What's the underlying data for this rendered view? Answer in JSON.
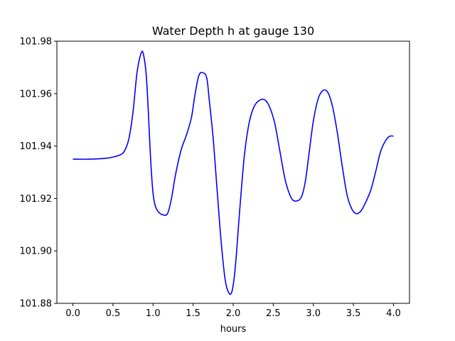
{
  "chart_data": {
    "type": "line",
    "title": "Water Depth h at gauge 130",
    "xlabel": "hours",
    "ylabel": "",
    "xlim": [
      -0.2,
      4.2
    ],
    "ylim": [
      101.88,
      101.98
    ],
    "xticks": [
      0.0,
      0.5,
      1.0,
      1.5,
      2.0,
      2.5,
      3.0,
      3.5,
      4.0
    ],
    "xtick_labels": [
      "0.0",
      "0.5",
      "1.0",
      "1.5",
      "2.0",
      "2.5",
      "3.0",
      "3.5",
      "4.0"
    ],
    "yticks": [
      101.88,
      101.9,
      101.92,
      101.94,
      101.96,
      101.98
    ],
    "ytick_labels": [
      "101.88",
      "101.90",
      "101.92",
      "101.94",
      "101.96",
      "101.98"
    ],
    "grid": false,
    "series": [
      {
        "color": "#0000ff",
        "x": [
          0.0,
          0.2,
          0.4,
          0.5,
          0.6,
          0.65,
          0.7,
          0.75,
          0.8,
          0.85,
          0.88,
          0.92,
          0.97,
          1.0,
          1.03,
          1.07,
          1.12,
          1.18,
          1.23,
          1.28,
          1.35,
          1.42,
          1.48,
          1.52,
          1.57,
          1.62,
          1.67,
          1.7,
          1.75,
          1.8,
          1.85,
          1.9,
          1.95,
          1.99,
          2.03,
          2.08,
          2.14,
          2.2,
          2.26,
          2.33,
          2.4,
          2.46,
          2.52,
          2.58,
          2.65,
          2.72,
          2.78,
          2.85,
          2.9,
          2.95,
          3.0,
          3.06,
          3.12,
          3.18,
          3.24,
          3.3,
          3.36,
          3.42,
          3.48,
          3.54,
          3.6,
          3.66,
          3.72,
          3.78,
          3.84,
          3.9,
          3.95,
          4.0
        ],
        "y": [
          101.935,
          101.935,
          101.9353,
          101.9358,
          101.9368,
          101.9385,
          101.943,
          101.953,
          101.968,
          101.9753,
          101.975,
          101.965,
          101.935,
          101.922,
          101.917,
          101.9148,
          101.9138,
          101.9142,
          101.92,
          101.929,
          101.9385,
          101.9445,
          101.951,
          101.959,
          101.9668,
          101.968,
          101.966,
          101.958,
          101.943,
          101.923,
          101.9035,
          101.889,
          101.8838,
          101.8852,
          101.895,
          101.915,
          101.9365,
          101.949,
          101.955,
          101.9575,
          101.9575,
          101.9545,
          101.9485,
          101.9385,
          101.927,
          101.9205,
          101.919,
          101.9205,
          101.9265,
          101.938,
          101.9495,
          101.958,
          101.9612,
          101.9605,
          101.955,
          101.945,
          101.9325,
          101.9215,
          101.916,
          101.9142,
          101.9155,
          101.919,
          101.9235,
          101.9305,
          101.938,
          101.942,
          101.9437,
          101.9438
        ]
      }
    ]
  }
}
